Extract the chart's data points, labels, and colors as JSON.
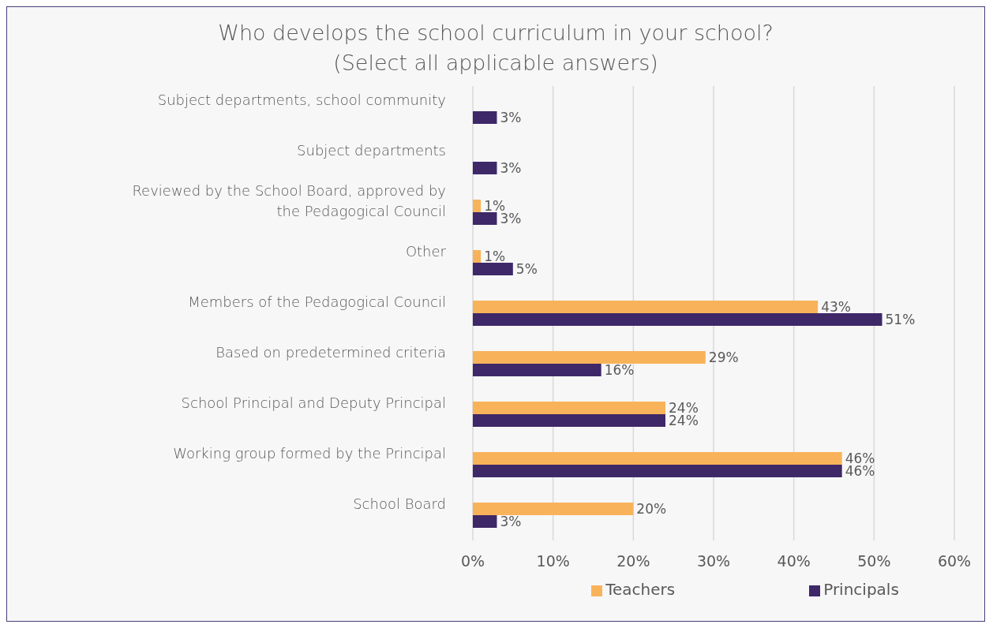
{
  "chart_data": {
    "type": "bar",
    "orientation": "horizontal",
    "title": "Who develops the school curriculum in your school? (Select all applicable answers)",
    "categories": [
      "Subject departments, school community",
      "Subject departments",
      "Reviewed by the School Board, approved by the Pedagogical Council",
      "Other",
      "Members of the Pedagogical Council",
      "Based on predetermined criteria",
      "School Principal and Deputy Principal",
      "Working group formed by the Principal",
      "School Board"
    ],
    "series": [
      {
        "name": "Teachers",
        "color": "#f8b35a",
        "values": [
          null,
          null,
          1,
          1,
          43,
          29,
          24,
          46,
          20
        ],
        "value_labels": [
          null,
          null,
          "1%",
          "1%",
          "43%",
          "29%",
          "24%",
          "46%",
          "20%"
        ]
      },
      {
        "name": "Principals",
        "color": "#3e2868",
        "values": [
          3,
          3,
          3,
          5,
          51,
          16,
          24,
          46,
          3
        ],
        "value_labels": [
          "3%",
          "3%",
          "3%",
          "5%",
          "51%",
          "16%",
          "24%",
          "46%",
          "3%"
        ]
      }
    ],
    "xlim": [
      0,
      60
    ],
    "xticks": [
      {
        "value": 0,
        "label": "0%"
      },
      {
        "value": 10,
        "label": "10%"
      },
      {
        "value": 20,
        "label": "20%"
      },
      {
        "value": 30,
        "label": "30%"
      },
      {
        "value": 40,
        "label": "40%"
      },
      {
        "value": 50,
        "label": "50%"
      },
      {
        "value": 60,
        "label": "60%"
      }
    ],
    "grid": "x",
    "legend": "bottom"
  }
}
